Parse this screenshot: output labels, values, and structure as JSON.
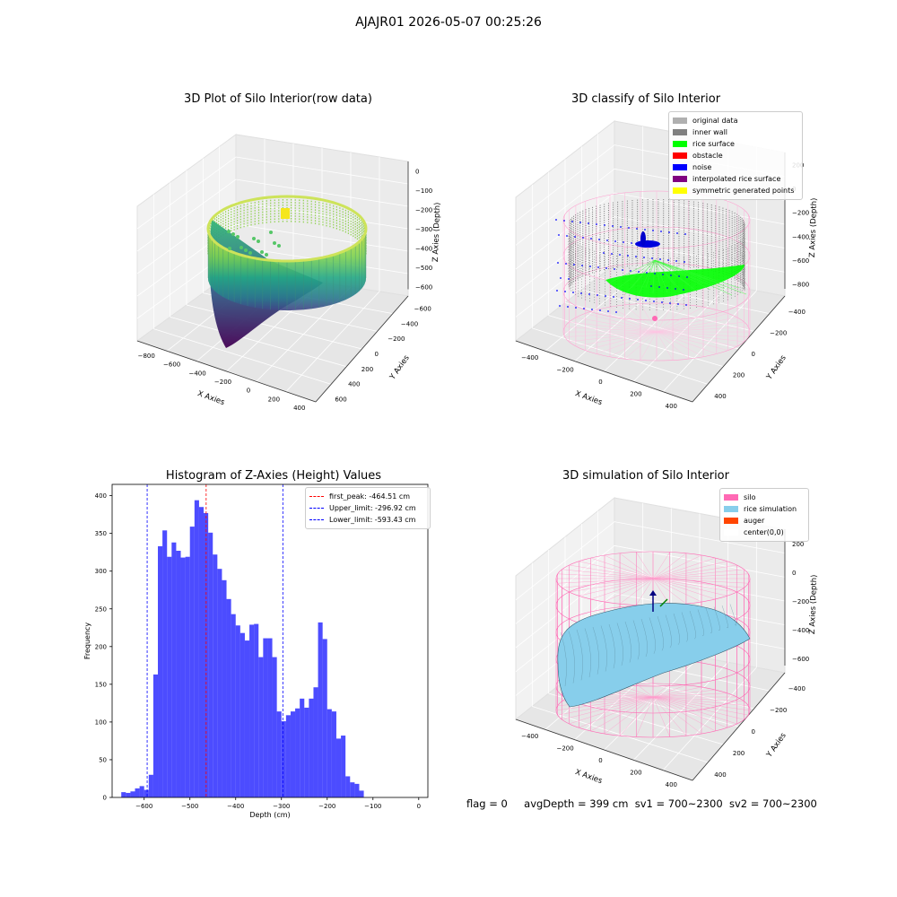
{
  "suptitle": "AJAJR01 2026-05-07 00:25:26",
  "plots": {
    "raw": {
      "title": "3D Plot of Silo Interior(row data)",
      "xlabel": "X Axies",
      "ylabel": "Y Axies",
      "zlabel": "Z Axies (Depth)",
      "xticks": [
        "−800",
        "−600",
        "−400",
        "−200",
        "0",
        "200",
        "400"
      ],
      "yticks": [
        "600",
        "400",
        "200",
        "0",
        "−200",
        "−400",
        "−600"
      ],
      "zticks": [
        "0",
        "−100",
        "−200",
        "−300",
        "−400",
        "−500",
        "−600"
      ]
    },
    "classify": {
      "title": "3D classify of Silo Interior",
      "xlabel": "X Axies",
      "ylabel": "Y Axies",
      "zlabel": "Z Axies (Depth)",
      "xticks": [
        "−400",
        "−200",
        "0",
        "200",
        "400"
      ],
      "yticks": [
        "400",
        "200",
        "0",
        "−200",
        "−400"
      ],
      "zticks": [
        "200",
        "0",
        "−200",
        "−400",
        "−600",
        "−800"
      ],
      "legend": [
        {
          "label": "original data",
          "color": "#b0b0b0"
        },
        {
          "label": "inner wall",
          "color": "#808080"
        },
        {
          "label": "rice surface",
          "color": "#00ff00"
        },
        {
          "label": "obstacle",
          "color": "#ff0000"
        },
        {
          "label": "noise",
          "color": "#0000ff"
        },
        {
          "label": "interpolated rice surface",
          "color": "#800080"
        },
        {
          "label": "symmetric generated points",
          "color": "#ffff00"
        }
      ]
    },
    "simulation": {
      "title": "3D simulation of Silo Interior",
      "xlabel": "X Axies",
      "ylabel": "Y Axies",
      "zlabel": "Z Axies (Depth)",
      "xticks": [
        "−400",
        "−200",
        "0",
        "200",
        "400"
      ],
      "yticks": [
        "400",
        "200",
        "0",
        "−200",
        "−400"
      ],
      "zticks": [
        "200",
        "0",
        "−200",
        "−400",
        "−600"
      ],
      "legend": [
        {
          "label": "silo",
          "color": "#ff69b4"
        },
        {
          "label": "rice simulation",
          "color": "#87ceeb"
        },
        {
          "label": "auger",
          "color": "#ff4500"
        },
        {
          "label": "center(0,0)",
          "color": "#ffffff"
        }
      ]
    }
  },
  "chart_data": {
    "type": "bar",
    "title": "Histogram of Z-Axies (Height) Values",
    "xlabel": "Depth (cm)",
    "ylabel": "Frequency",
    "xlim": [
      -670,
      20
    ],
    "ylim": [
      0,
      415
    ],
    "xticks": [
      -600,
      -500,
      -400,
      -300,
      -200,
      -100,
      0
    ],
    "yticks": [
      0,
      50,
      100,
      150,
      200,
      250,
      300,
      350,
      400
    ],
    "bar_color": "#0000ff",
    "bin_edges": [
      -650,
      -640,
      -630,
      -620,
      -610,
      -600,
      -590,
      -580,
      -570,
      -560,
      -550,
      -540,
      -530,
      -520,
      -510,
      -500,
      -490,
      -480,
      -470,
      -460,
      -450,
      -440,
      -430,
      -420,
      -410,
      -400,
      -390,
      -380,
      -370,
      -360,
      -350,
      -340,
      -330,
      -320,
      -310,
      -300,
      -290,
      -280,
      -270,
      -260,
      -250,
      -240,
      -230,
      -220,
      -210,
      -200,
      -190,
      -180,
      -170,
      -160,
      -150,
      -140,
      -130,
      -120,
      -110,
      -100,
      -90,
      -80,
      -70,
      -60,
      -50,
      -40,
      -30,
      -20,
      -10,
      0
    ],
    "counts": [
      7,
      6,
      8,
      12,
      15,
      10,
      30,
      163,
      333,
      354,
      319,
      338,
      327,
      318,
      319,
      359,
      394,
      385,
      377,
      351,
      322,
      303,
      288,
      263,
      243,
      228,
      218,
      208,
      229,
      230,
      186,
      211,
      211,
      186,
      114,
      101,
      109,
      114,
      118,
      131,
      119,
      131,
      146,
      232,
      210,
      117,
      114,
      78,
      82,
      28,
      20,
      18,
      9,
      0,
      0,
      0,
      0,
      0,
      0,
      0,
      0,
      0,
      0,
      0,
      0
    ],
    "lines": [
      {
        "label": "first_peak: -464.51 cm",
        "x": -464.51,
        "color": "#ff0000"
      },
      {
        "label": "Upper_limit: -296.92 cm",
        "x": -296.92,
        "color": "#0000ff"
      },
      {
        "label": "Lower_limit: -593.43 cm",
        "x": -593.43,
        "color": "#0000ff"
      }
    ]
  },
  "status": {
    "flag": "flag = 0",
    "avg": "avgDepth = 399 cm",
    "sv1": "sv1 = 700~2300",
    "sv2": "sv2 = 700~2300"
  }
}
